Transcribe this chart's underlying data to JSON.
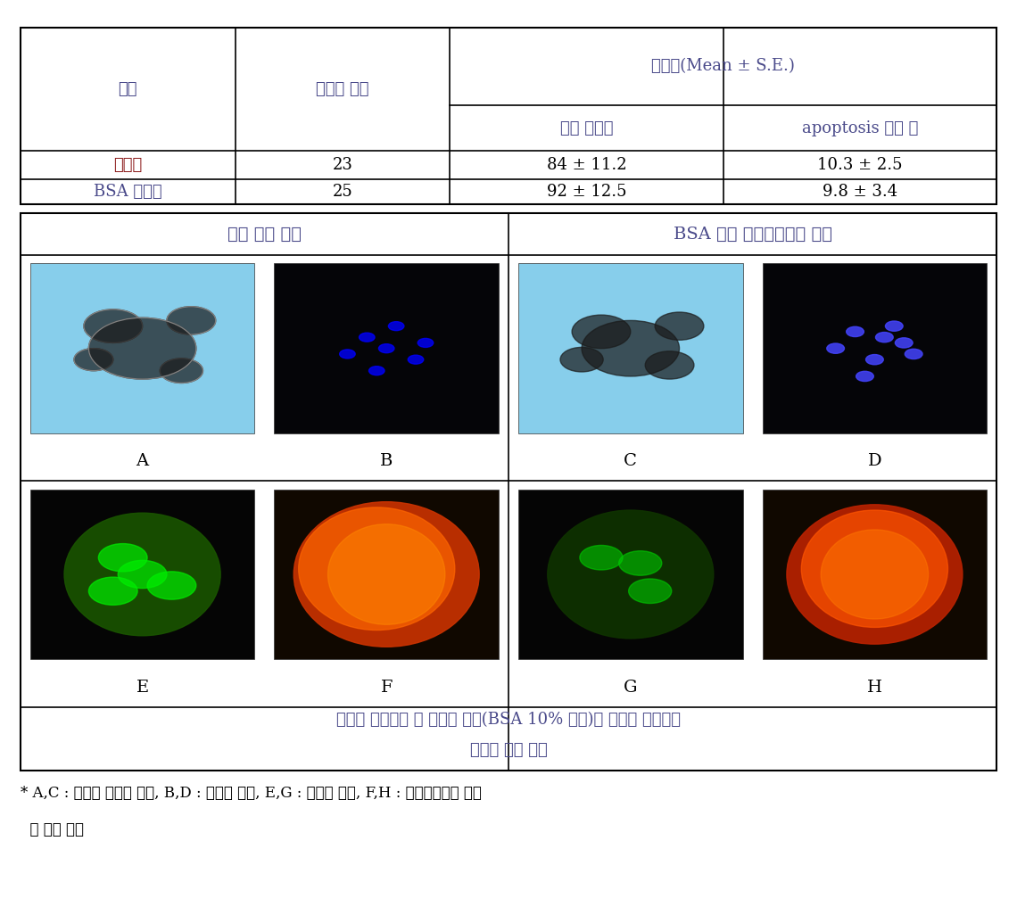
{
  "table_header_row1": [
    "그룹",
    "수정란 갯수",
    "세포수(Mean ± S.E.)",
    ""
  ],
  "table_header_row2": [
    "",
    "",
    "전체 세포수",
    "apoptosis 세포 수"
  ],
  "table_data_row1": [
    "대조구",
    "23",
    "84 ± 11.2",
    "10.3 ± 2.5"
  ],
  "table_data_row2": [
    "BSA 첨가구",
    "25",
    "92 ± 12.5",
    "9.8 ± 3.4"
  ],
  "panel_left_title": "기존 배양 방법",
  "panel_right_title": "BSA 첨가 배양액에서의 배양",
  "panel_labels_row1": [
    "A",
    "B",
    "C",
    "D"
  ],
  "panel_labels_row2": [
    "E",
    "F",
    "G",
    "H"
  ],
  "caption": "수정란 동결융해 후 배양액 조성(BSA 10% 첨가)이 수정란 생존성에\n미치는 영향 분석",
  "footnote_line1": "* A,C : 수정란 배발달 분석, B,D : 세포수 분석, E,G : 세포사 분석, F,H : 미토콘드리아 유전",
  "footnote_line2": "  자 절편 분석",
  "bg_color": "#ffffff",
  "table_border_color": "#000000",
  "text_color_korean_header": "#4a4a8a",
  "text_color_data": "#000000",
  "text_color_daejogu": "#8b1a1a",
  "panel_bg_left_top": "#87ceeb",
  "panel_bg_right_top": "#87ceeb",
  "panel_bg_B": "#000000",
  "panel_bg_D": "#000000"
}
